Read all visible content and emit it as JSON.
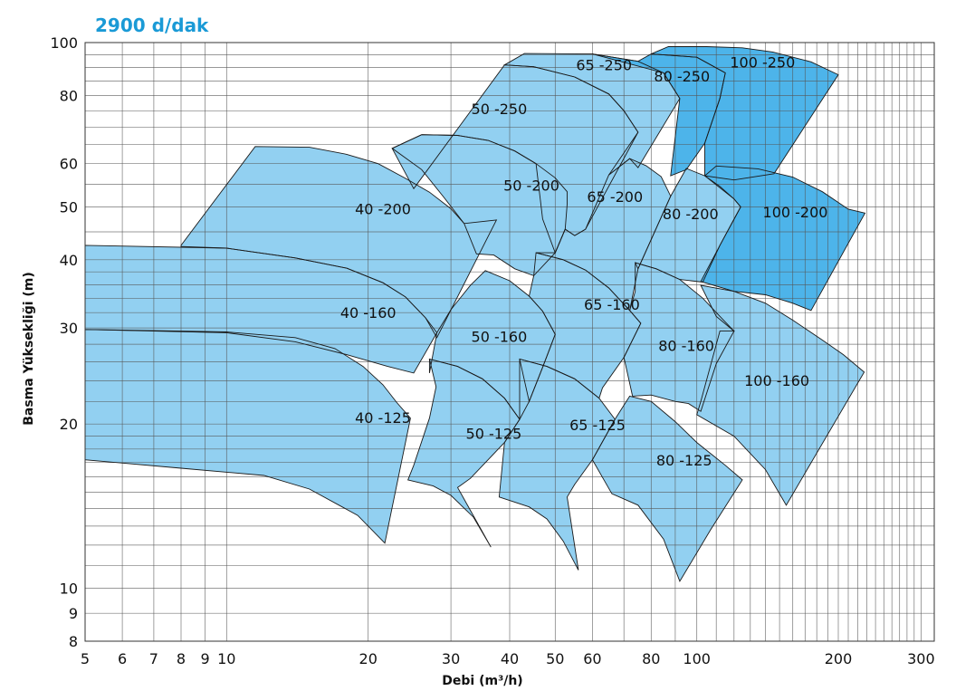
{
  "title": "2900  d/dak",
  "colors": {
    "title": "#1a9ad6",
    "light_fill": "#92d0f1",
    "dark_fill": "#4db4ea",
    "grid": "#555555",
    "outline": "#1a1a1a",
    "text": "#111111"
  },
  "chart_data": {
    "type": "area",
    "title": "2900  d/dak",
    "xlabel": "Debi (m³/h)",
    "ylabel": "Basma Yüksekliği (m)",
    "xscale": "log",
    "yscale": "log",
    "xlim": [
      5,
      320
    ],
    "ylim": [
      8,
      100
    ],
    "grid": true,
    "x_ticks": [
      5,
      6,
      7,
      8,
      9,
      10,
      20,
      30,
      40,
      50,
      60,
      80,
      100,
      200,
      300
    ],
    "x_tick_labels": [
      "5",
      "6",
      "7",
      "8",
      "9",
      "10",
      "20",
      "30",
      "40",
      "50",
      "60",
      "80",
      "100",
      "200",
      "300"
    ],
    "y_ticks": [
      8,
      9,
      10,
      20,
      30,
      40,
      50,
      60,
      80,
      100
    ],
    "y_tick_labels": [
      "8",
      "9",
      "10",
      "20",
      "30",
      "40",
      "50",
      "60",
      "80",
      "100"
    ],
    "series": [
      {
        "name": "40 -125",
        "shade": "light",
        "label_at": [
          21.5,
          20.1
        ],
        "points": [
          [
            5,
            29.8
          ],
          [
            10,
            29.5
          ],
          [
            14,
            28.8
          ],
          [
            17,
            27.5
          ],
          [
            19.5,
            25.5
          ],
          [
            21.5,
            23.6
          ],
          [
            23,
            21.9
          ],
          [
            24.6,
            20.5
          ],
          [
            21.7,
            12.1
          ],
          [
            19,
            13.6
          ],
          [
            15,
            15.2
          ],
          [
            12,
            16.1
          ],
          [
            8,
            16.6
          ],
          [
            5,
            17.2
          ]
        ]
      },
      {
        "name": "40 -160",
        "shade": "light",
        "label_at": [
          20,
          31.3
        ],
        "points": [
          [
            5,
            42.5
          ],
          [
            10,
            42.0
          ],
          [
            14,
            40.3
          ],
          [
            18,
            38.6
          ],
          [
            21.5,
            36.3
          ],
          [
            24,
            34.2
          ],
          [
            26.5,
            31.3
          ],
          [
            28,
            29.4
          ],
          [
            25,
            24.8
          ],
          [
            22,
            25.5
          ],
          [
            18,
            26.8
          ],
          [
            14,
            28.3
          ],
          [
            10,
            29.4
          ],
          [
            5,
            29.8
          ]
        ]
      },
      {
        "name": "40 -200",
        "shade": "light",
        "label_at": [
          21.5,
          48.5
        ],
        "points": [
          [
            8,
            42.5
          ],
          [
            11.5,
            64.5
          ],
          [
            15,
            64.3
          ],
          [
            18,
            62.4
          ],
          [
            21,
            60.0
          ],
          [
            24,
            56.4
          ],
          [
            27,
            53.2
          ],
          [
            30,
            49.6
          ],
          [
            32,
            46.6
          ],
          [
            37.5,
            47.3
          ],
          [
            28,
            28.8
          ],
          [
            26.5,
            31.3
          ],
          [
            24,
            34.2
          ],
          [
            21.5,
            36.3
          ],
          [
            18,
            38.6
          ],
          [
            14,
            40.3
          ],
          [
            10,
            42.0
          ],
          [
            8,
            42.3
          ]
        ]
      },
      {
        "name": "50 -125",
        "shade": "light",
        "label_at": [
          37,
          18.8
        ],
        "points": [
          [
            27,
            26.3
          ],
          [
            31,
            25.5
          ],
          [
            35,
            24.2
          ],
          [
            39,
            22.3
          ],
          [
            42,
            20.4
          ],
          [
            39,
            18.5
          ],
          [
            33,
            15.9
          ],
          [
            31,
            15.3
          ],
          [
            36.5,
            11.9
          ],
          [
            33.5,
            13.5
          ],
          [
            30,
            14.8
          ],
          [
            27.5,
            15.4
          ],
          [
            24.3,
            15.8
          ],
          [
            25,
            16.8
          ],
          [
            27,
            20.5
          ],
          [
            27.9,
            23.4
          ]
        ]
      },
      {
        "name": "50 -160",
        "shade": "light",
        "label_at": [
          38,
          28.3
        ],
        "points": [
          [
            35.5,
            38.2
          ],
          [
            40,
            36.6
          ],
          [
            44,
            34.3
          ],
          [
            47,
            32.2
          ],
          [
            50,
            29.2
          ],
          [
            47,
            25.4
          ],
          [
            44,
            22.0
          ],
          [
            42,
            20.4
          ],
          [
            39,
            22.3
          ],
          [
            35,
            24.2
          ],
          [
            31,
            25.5
          ],
          [
            27,
            26.3
          ],
          [
            27,
            24.8
          ],
          [
            28,
            29.4
          ],
          [
            30,
            32.4
          ],
          [
            33,
            35.9
          ]
        ]
      },
      {
        "name": "50 -200",
        "shade": "light",
        "label_at": [
          44.5,
          53.5
        ],
        "points": [
          [
            22.5,
            64.0
          ],
          [
            26,
            67.8
          ],
          [
            31,
            67.6
          ],
          [
            36,
            66.2
          ],
          [
            41,
            63.3
          ],
          [
            45.5,
            60.0
          ],
          [
            50,
            56.5
          ],
          [
            53,
            53.3
          ],
          [
            53,
            50.6
          ],
          [
            52.5,
            45.5
          ],
          [
            50,
            41.2
          ],
          [
            45,
            37.4
          ],
          [
            41,
            38.5
          ],
          [
            37,
            40.8
          ],
          [
            34,
            41.0
          ],
          [
            32,
            46.6
          ],
          [
            29,
            52.0
          ],
          [
            26,
            58.5
          ]
        ]
      },
      {
        "name": "50 -250",
        "shade": "light",
        "label_at": [
          38,
          74.0
        ],
        "points": [
          [
            25,
            54.0
          ],
          [
            39,
            91.0
          ],
          [
            45,
            90.3
          ],
          [
            55,
            86.5
          ],
          [
            65,
            80.5
          ],
          [
            70,
            75.0
          ],
          [
            75,
            68.5
          ],
          [
            58,
            45.5
          ],
          [
            55,
            44.3
          ],
          [
            52.5,
            45.5
          ],
          [
            50,
            41.2
          ],
          [
            47,
            47.5
          ],
          [
            45.5,
            60.0
          ],
          [
            41,
            63.3
          ],
          [
            36,
            66.2
          ],
          [
            31,
            67.6
          ],
          [
            26,
            67.8
          ],
          [
            22.5,
            64.0
          ]
        ]
      },
      {
        "name": "65 -125",
        "shade": "light",
        "label_at": [
          61.5,
          19.5
        ],
        "points": [
          [
            42,
            26.3
          ],
          [
            48,
            25.5
          ],
          [
            55,
            24.2
          ],
          [
            62,
            22.3
          ],
          [
            67,
            20.4
          ],
          [
            60,
            17.2
          ],
          [
            55,
            15.5
          ],
          [
            53,
            14.7
          ],
          [
            56,
            10.8
          ],
          [
            52,
            12.2
          ],
          [
            48,
            13.4
          ],
          [
            44,
            14.1
          ],
          [
            38,
            14.7
          ],
          [
            39,
            18.5
          ],
          [
            42,
            20.4
          ]
        ]
      },
      {
        "name": "65 -160",
        "shade": "light",
        "label_at": [
          66,
          32.4
        ],
        "points": [
          [
            45.5,
            41.2
          ],
          [
            52,
            40.0
          ],
          [
            58,
            38.3
          ],
          [
            65,
            35.5
          ],
          [
            72,
            32.3
          ],
          [
            76,
            30.6
          ],
          [
            70,
            26.5
          ],
          [
            63,
            23.3
          ],
          [
            62,
            22.3
          ],
          [
            55,
            24.2
          ],
          [
            48,
            25.5
          ],
          [
            42,
            26.3
          ],
          [
            44,
            22.0
          ],
          [
            47,
            25.4
          ],
          [
            50,
            29.2
          ],
          [
            47,
            32.2
          ],
          [
            44,
            34.3
          ],
          [
            45,
            37.4
          ]
        ]
      },
      {
        "name": "65 -200",
        "shade": "light",
        "label_at": [
          67,
          51.0
        ],
        "points": [
          [
            55,
            44.3
          ],
          [
            58,
            45.5
          ],
          [
            65,
            57.2
          ],
          [
            72,
            61.3
          ],
          [
            78,
            59.5
          ],
          [
            84,
            56.8
          ],
          [
            88,
            52.3
          ],
          [
            75,
            38.5
          ],
          [
            72,
            32.3
          ],
          [
            65,
            35.5
          ],
          [
            58,
            38.3
          ],
          [
            52,
            40.0
          ],
          [
            45.5,
            41.2
          ],
          [
            50,
            41.2
          ],
          [
            52.5,
            45.5
          ]
        ]
      },
      {
        "name": "65 -250",
        "shade": "light",
        "label_at": [
          63.5,
          89.0
        ],
        "points": [
          [
            43,
            95.5
          ],
          [
            60,
            95.3
          ],
          [
            75,
            92.4
          ],
          [
            85,
            88.0
          ],
          [
            92,
            79.0
          ],
          [
            75,
            59.0
          ],
          [
            72,
            61.3
          ],
          [
            65,
            57.2
          ],
          [
            75,
            68.5
          ],
          [
            70,
            75.0
          ],
          [
            65,
            80.5
          ],
          [
            55,
            86.5
          ],
          [
            45,
            90.3
          ],
          [
            39,
            91.0
          ]
        ]
      },
      {
        "name": "80 -125",
        "shade": "light",
        "label_at": [
          94,
          16.8
        ],
        "points": [
          [
            72,
            22.5
          ],
          [
            80,
            22.0
          ],
          [
            90,
            20.2
          ],
          [
            100,
            18.5
          ],
          [
            115,
            16.8
          ],
          [
            125,
            15.8
          ],
          [
            107,
            12.8
          ],
          [
            92,
            10.3
          ],
          [
            85,
            12.3
          ],
          [
            75,
            14.2
          ],
          [
            66,
            14.9
          ],
          [
            60,
            17.2
          ],
          [
            67,
            20.4
          ],
          [
            72,
            22.5
          ]
        ]
      },
      {
        "name": "80 -160",
        "shade": "light",
        "label_at": [
          95,
          27.2
        ],
        "points": [
          [
            74,
            39.5
          ],
          [
            82,
            38.5
          ],
          [
            92,
            36.8
          ],
          [
            103,
            34.0
          ],
          [
            112,
            31.5
          ],
          [
            120,
            29.6
          ],
          [
            110,
            25.8
          ],
          [
            102,
            21.1
          ],
          [
            96,
            21.8
          ],
          [
            90,
            22.0
          ],
          [
            80,
            22.6
          ],
          [
            73,
            22.5
          ],
          [
            70,
            26.5
          ],
          [
            76,
            30.6
          ],
          [
            72,
            32.3
          ],
          [
            74,
            35.0
          ]
        ]
      },
      {
        "name": "80 -200",
        "shade": "light",
        "label_at": [
          97,
          47.5
        ],
        "points": [
          [
            88,
            52.3
          ],
          [
            95,
            58.8
          ],
          [
            104,
            57.0
          ],
          [
            112,
            54.5
          ],
          [
            120,
            51.7
          ],
          [
            124,
            50.0
          ],
          [
            112,
            42.5
          ],
          [
            103,
            36.4
          ],
          [
            92,
            36.8
          ],
          [
            82,
            38.5
          ],
          [
            74,
            39.5
          ],
          [
            75,
            38.5
          ]
        ]
      },
      {
        "name": "80 -250",
        "shade": "dark",
        "label_at": [
          93,
          84.8
        ],
        "points": [
          [
            60,
            95.3
          ],
          [
            75,
            92.4
          ],
          [
            80,
            95.3
          ],
          [
            100,
            94.0
          ],
          [
            115,
            88.0
          ],
          [
            112,
            79.0
          ],
          [
            104,
            65.4
          ],
          [
            95,
            58.5
          ],
          [
            88,
            57.0
          ],
          [
            92,
            79.0
          ],
          [
            85,
            88.0
          ]
        ]
      },
      {
        "name": "100 -160",
        "shade": "light",
        "label_at": [
          148,
          23.5
        ],
        "points": [
          [
            102,
            35.9
          ],
          [
            120,
            35.0
          ],
          [
            140,
            33.3
          ],
          [
            160,
            31.0
          ],
          [
            185,
            28.5
          ],
          [
            205,
            26.8
          ],
          [
            227,
            24.9
          ],
          [
            155,
            14.2
          ],
          [
            140,
            16.5
          ],
          [
            120,
            19.0
          ],
          [
            100,
            20.8
          ],
          [
            102,
            22.0
          ],
          [
            112,
            29.6
          ],
          [
            120,
            29.6
          ],
          [
            110,
            31.5
          ]
        ]
      },
      {
        "name": "100 -200",
        "shade": "dark",
        "label_at": [
          162,
          47.8
        ],
        "points": [
          [
            110,
            59.4
          ],
          [
            135,
            58.7
          ],
          [
            160,
            56.7
          ],
          [
            185,
            53.3
          ],
          [
            210,
            49.5
          ],
          [
            228,
            48.7
          ],
          [
            175,
            32.3
          ],
          [
            160,
            33.3
          ],
          [
            140,
            34.5
          ],
          [
            120,
            35.0
          ],
          [
            102,
            36.5
          ],
          [
            112,
            42.5
          ],
          [
            124,
            50.0
          ],
          [
            120,
            51.7
          ],
          [
            104,
            57.0
          ]
        ]
      },
      {
        "name": "100 -250",
        "shade": "dark",
        "label_at": [
          138,
          90.0
        ],
        "points": [
          [
            87,
            98.3
          ],
          [
            105,
            98.3
          ],
          [
            125,
            97.8
          ],
          [
            145,
            96.1
          ],
          [
            175,
            92.2
          ],
          [
            200,
            87.3
          ],
          [
            146,
            57.5
          ],
          [
            120,
            56.0
          ],
          [
            104,
            57.0
          ],
          [
            104,
            65.4
          ],
          [
            112,
            79.0
          ],
          [
            115,
            88.0
          ],
          [
            100,
            94.0
          ],
          [
            80,
            95.3
          ]
        ]
      }
    ]
  }
}
